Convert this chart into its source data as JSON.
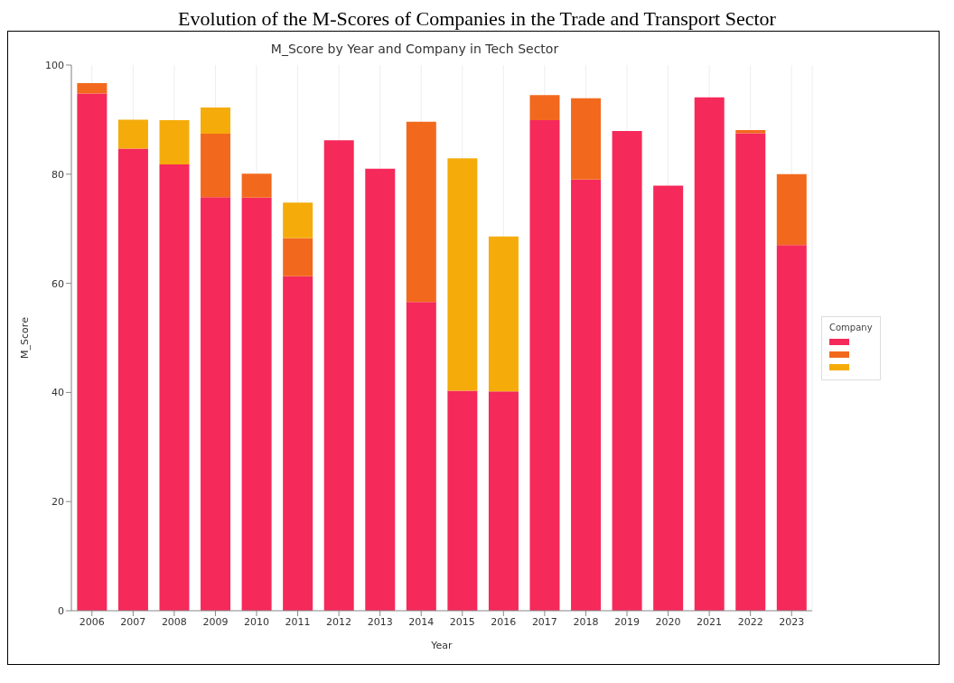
{
  "chart_data": {
    "type": "bar",
    "title": "M_Score by Year and Company in Tech Sector",
    "xlabel": "Year",
    "ylabel": "M_Score",
    "legend_title": "Company",
    "annotations": [
      "Evolution of the M-Scores of Companies in the Trade and Transport Sector"
    ],
    "categories": [
      "2006",
      "2007",
      "2008",
      "2009",
      "2010",
      "2011",
      "2012",
      "2013",
      "2014",
      "2015",
      "2016",
      "2017",
      "2018",
      "2019",
      "2020",
      "2021",
      "2022",
      "2023"
    ],
    "stacked": true,
    "series": [
      {
        "color": "#f5295a",
        "values": [
          94.8,
          84.7,
          81.8,
          75.8,
          75.7,
          61.3,
          86.2,
          81.0,
          56.6,
          40.3,
          40.2,
          89.9,
          79.0,
          87.9,
          77.9,
          94.1,
          87.5,
          67.0
        ]
      },
      {
        "color": "#f2691e",
        "values": [
          1.9,
          0,
          0,
          11.6,
          4.4,
          7.0,
          0,
          0,
          33.0,
          0,
          0,
          4.6,
          14.9,
          0,
          0,
          0,
          0.6,
          13.0
        ]
      },
      {
        "color": "#f5ac0a",
        "values": [
          0,
          5.3,
          8.1,
          4.8,
          0,
          6.5,
          0,
          0,
          0,
          42.6,
          28.4,
          0,
          0,
          0,
          0,
          0,
          0,
          0
        ]
      }
    ],
    "ylim": [
      0,
      100
    ],
    "yticks": [
      0,
      20,
      40,
      60,
      80,
      100
    ],
    "grid": "x"
  }
}
